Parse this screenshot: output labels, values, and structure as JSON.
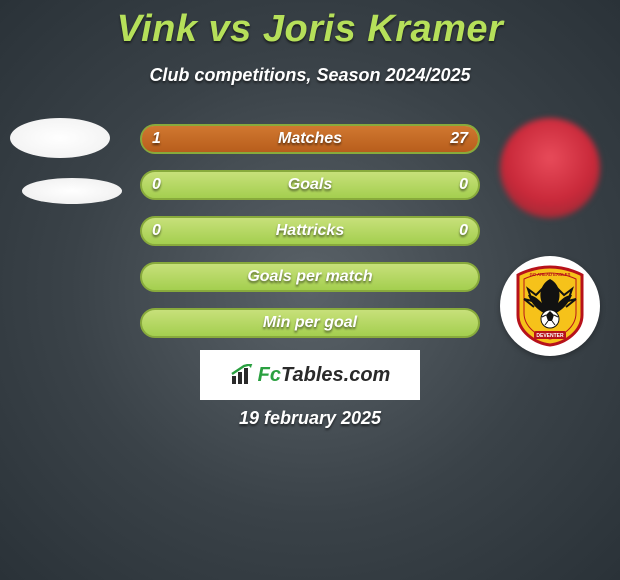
{
  "title": "Vink vs Joris Kramer",
  "title_color": "#b6e05a",
  "subtitle": "Club competitions, Season 2024/2025",
  "date": "19 february 2025",
  "brand": {
    "prefix": "Fc",
    "suffix": "Tables.com",
    "accent_color": "#2aa040"
  },
  "bar_colors": {
    "base_gradient_top": "#c7e07a",
    "base_gradient_bottom": "#a4cf4f",
    "border": "#88aa3c",
    "fill_gradient_top": "#d07830",
    "fill_gradient_bottom": "#b85e1c"
  },
  "rows": [
    {
      "label": "Matches",
      "left": "1",
      "right": "27",
      "left_pct": 3.6,
      "right_pct": 96.4
    },
    {
      "label": "Goals",
      "left": "0",
      "right": "0",
      "left_pct": 0,
      "right_pct": 0
    },
    {
      "label": "Hattricks",
      "left": "0",
      "right": "0",
      "left_pct": 0,
      "right_pct": 0
    },
    {
      "label": "Goals per match",
      "left": "",
      "right": "",
      "left_pct": 0,
      "right_pct": 0
    },
    {
      "label": "Min per goal",
      "left": "",
      "right": "",
      "left_pct": 0,
      "right_pct": 0
    }
  ],
  "crest": {
    "shield_fill": "#f6c21a",
    "shield_stroke": "#b7121a",
    "eagle_fill": "#111111",
    "ball_fill": "#ffffff",
    "top_text": "GO AHEAD EAGLES",
    "bottom_text": "DEVENTER"
  }
}
